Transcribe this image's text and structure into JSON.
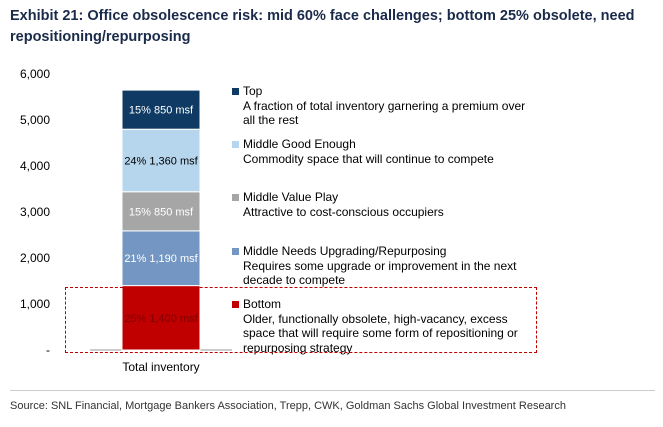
{
  "title": "Exhibit 21: Office obsolescence risk: mid 60% face challenges; bottom 25% obsolete, need repositioning/repurposing",
  "source": "Source: SNL Financial, Mortgage Bankers Association, Trepp, CWK, Goldman Sachs Global Investment Research",
  "chart_data": {
    "type": "bar",
    "stacked": true,
    "categories": [
      "Total inventory"
    ],
    "ylim": [
      0,
      6000
    ],
    "yticks": [
      0,
      1000,
      2000,
      3000,
      4000,
      5000,
      6000
    ],
    "ytick_labels": [
      "-",
      "1,000",
      "2,000",
      "3,000",
      "4,000",
      "5,000",
      "6,000"
    ],
    "grid": false,
    "legend_position": "right",
    "series": [
      {
        "name": "Bottom",
        "values": [
          1400
        ],
        "label": "25% 1,400 msf",
        "color": "#c00000",
        "label_color": "#7a0000",
        "description": "Older, functionally obsolete, high-vacancy, excess space that will require some form of repositioning or repurposing strategy"
      },
      {
        "name": "Middle Needs Upgrading/Repurposing",
        "values": [
          1190
        ],
        "label": "21% 1,190 msf",
        "color": "#7396c2",
        "label_color": "#ffffff",
        "description": "Requires some upgrade or improvement in the next decade to compete"
      },
      {
        "name": "Middle Value Play",
        "values": [
          850
        ],
        "label": "15% 850 msf",
        "color": "#a6a6a6",
        "label_color": "#ffffff",
        "description": "Attractive to cost-conscious occupiers"
      },
      {
        "name": "Middle Good Enough",
        "values": [
          1360
        ],
        "label": "24% 1,360 msf",
        "color": "#b6d6ee",
        "label_color": "#000000",
        "description": "Commodity space that will continue to compete"
      },
      {
        "name": "Top",
        "values": [
          850
        ],
        "label": "15% 850 msf",
        "color": "#0e3a63",
        "label_color": "#ffffff",
        "description": "A fraction of total inventory garnering a premium over all the rest"
      }
    ]
  }
}
